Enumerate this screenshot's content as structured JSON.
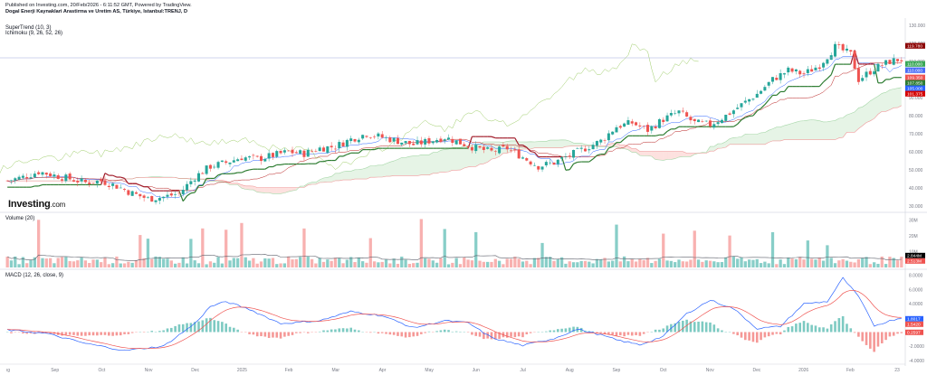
{
  "header": {
    "published": "Published on Investing.com, 20/Feb/2026 - 6:11:52 GMT, Powered by TradingView.",
    "symbol_title": "Dogal Enerji Kaynaklari Arastirma ve Uretim AS, Türkiye, Istanbul:TRENJ, D"
  },
  "logo": {
    "main": "Investing",
    "suffix": ".com"
  },
  "chart_data": [
    {
      "type": "candlestick",
      "indicators": [
        "SuperTrend (10, 3)",
        "Ichimoku (9, 26, 52, 26)"
      ],
      "x_ticks": [
        "ıg",
        "Sep",
        "Oct",
        "Nov",
        "Dec",
        "2025",
        "Feb",
        "Mar",
        "Apr",
        "May",
        "Jun",
        "Jul",
        "Aug",
        "Sep",
        "Oct",
        "Nov",
        "Dec",
        "2026",
        "Feb",
        "23"
      ],
      "y_ticks": [
        "130.000",
        "120.000",
        "110.000",
        "100.000",
        "90.000",
        "80.000",
        "70.000",
        "60.000",
        "50.000",
        "40.000",
        "30.000"
      ],
      "ylim": [
        28,
        132
      ],
      "price_path": [
        [
          0,
          44
        ],
        [
          4,
          46
        ],
        [
          8,
          49
        ],
        [
          12,
          47
        ],
        [
          16,
          45
        ],
        [
          20,
          43
        ],
        [
          24,
          44
        ],
        [
          28,
          41
        ],
        [
          32,
          37
        ],
        [
          36,
          34
        ],
        [
          40,
          35
        ],
        [
          44,
          37
        ],
        [
          48,
          46
        ],
        [
          52,
          52
        ],
        [
          56,
          54
        ],
        [
          60,
          57
        ],
        [
          64,
          56
        ],
        [
          68,
          58
        ],
        [
          72,
          60
        ],
        [
          76,
          59
        ],
        [
          80,
          62
        ],
        [
          84,
          63
        ],
        [
          88,
          67
        ],
        [
          92,
          70
        ],
        [
          96,
          68
        ],
        [
          100,
          66
        ],
        [
          104,
          64
        ],
        [
          108,
          66
        ],
        [
          112,
          68
        ],
        [
          116,
          65
        ],
        [
          120,
          62
        ],
        [
          124,
          60
        ],
        [
          128,
          62
        ],
        [
          132,
          57
        ],
        [
          136,
          52
        ],
        [
          140,
          54
        ],
        [
          144,
          58
        ],
        [
          148,
          62
        ],
        [
          152,
          66
        ],
        [
          156,
          74
        ],
        [
          160,
          76
        ],
        [
          164,
          72
        ],
        [
          168,
          78
        ],
        [
          172,
          82
        ],
        [
          176,
          76
        ],
        [
          180,
          75
        ],
        [
          184,
          80
        ],
        [
          188,
          86
        ],
        [
          192,
          92
        ],
        [
          196,
          100
        ],
        [
          200,
          105
        ],
        [
          204,
          103
        ],
        [
          208,
          108
        ],
        [
          212,
          118
        ],
        [
          216,
          114
        ],
        [
          218,
          100
        ],
        [
          222,
          106
        ],
        [
          226,
          110
        ],
        [
          228,
          111
        ]
      ],
      "candle_count": 230,
      "price_labels": [
        {
          "text": "119.780",
          "color": "#8b0000"
        },
        {
          "text": "110.000",
          "color": "#3aa757"
        },
        {
          "text": "110.000",
          "color": "#4a6cf7"
        },
        {
          "text": "109.350",
          "color": "#ef5350"
        },
        {
          "text": "107.850",
          "color": "#2e7d32"
        },
        {
          "text": "105.000",
          "color": "#2962ff"
        },
        {
          "text": "101.375",
          "color": "#d50000"
        }
      ]
    },
    {
      "type": "bar",
      "title": "Volume (20)",
      "y_ticks": [
        "30M",
        "20M",
        "10M"
      ],
      "ylim": [
        0,
        33
      ],
      "price_labels": [
        {
          "text": "2.844M",
          "color": "#000000"
        },
        {
          "text": "2.513M",
          "color": "#ef5350"
        }
      ]
    },
    {
      "type": "line",
      "title": "MACD (12, 26, close, 9)",
      "y_ticks": [
        "8.0000",
        "6.0000",
        "4.0000",
        "2.0000",
        "0.0000",
        "-2.0000",
        "-4.0000"
      ],
      "ylim": [
        -4.4,
        8.6
      ],
      "macd_path": [
        [
          0,
          0.3
        ],
        [
          10,
          -0.2
        ],
        [
          20,
          -1.6
        ],
        [
          30,
          -2.6
        ],
        [
          40,
          -2.0
        ],
        [
          48,
          1.2
        ],
        [
          52,
          3.6
        ],
        [
          56,
          4.3
        ],
        [
          62,
          3.2
        ],
        [
          70,
          1.2
        ],
        [
          80,
          1.6
        ],
        [
          88,
          2.9
        ],
        [
          96,
          2.3
        ],
        [
          104,
          0.6
        ],
        [
          112,
          1.6
        ],
        [
          118,
          1.3
        ],
        [
          124,
          -0.8
        ],
        [
          132,
          -1.9
        ],
        [
          140,
          -0.9
        ],
        [
          146,
          0.4
        ],
        [
          152,
          -0.4
        ],
        [
          156,
          -1.1
        ],
        [
          162,
          -1.8
        ],
        [
          168,
          -0.6
        ],
        [
          174,
          2.6
        ],
        [
          180,
          4.5
        ],
        [
          186,
          3.3
        ],
        [
          192,
          0.5
        ],
        [
          198,
          0.8
        ],
        [
          204,
          4.0
        ],
        [
          210,
          4.3
        ],
        [
          214,
          7.6
        ],
        [
          218,
          5.0
        ],
        [
          222,
          0.9
        ],
        [
          228,
          1.9
        ]
      ],
      "price_labels": [
        {
          "text": "1.8017",
          "color": "#2962ff"
        },
        {
          "text": "1.5420",
          "color": "#ef5350"
        },
        {
          "text": "0.2597",
          "color": "#ef5350"
        }
      ]
    }
  ]
}
